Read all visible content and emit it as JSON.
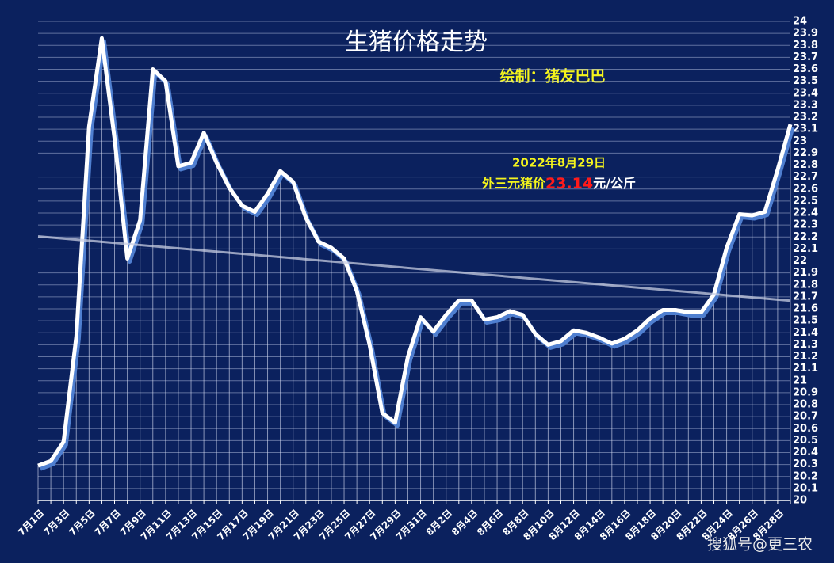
{
  "chart_data": {
    "type": "line",
    "title": "生猪价格走势",
    "credit": "绘制：猪友巴巴",
    "note_date": "2022年8月29日",
    "note_prefix": "外三元猪价",
    "note_unit": "元/公斤",
    "watermark": "搜狐号@更三农",
    "categories": [
      "7月1日",
      null,
      "7月3日",
      null,
      "7月5日",
      null,
      "7月7日",
      null,
      "7月9日",
      null,
      "7月11日",
      null,
      "7月13日",
      null,
      "7月15日",
      null,
      "7月17日",
      null,
      "7月19日",
      null,
      "7月21日",
      null,
      "7月23日",
      null,
      "7月25日",
      null,
      "7月27日",
      null,
      "7月29日",
      null,
      "7月31日",
      null,
      "8月2日",
      null,
      "8月4日",
      null,
      "8月6日",
      null,
      "8月8日",
      null,
      "8月10日",
      null,
      "8月12日",
      null,
      "8月14日",
      null,
      "8月16日",
      null,
      "8月18日",
      null,
      "8月20日",
      null,
      "8月22日",
      null,
      "8月24日",
      null,
      "8月26日",
      null,
      "8月28日",
      null
    ],
    "series": [
      {
        "color": "#ffffff",
        "values": [
          20.29,
          20.33,
          20.49,
          21.37,
          23.12,
          23.86,
          23.02,
          22.02,
          22.34,
          23.6,
          23.5,
          22.79,
          22.82,
          23.07,
          22.82,
          22.61,
          22.46,
          22.41,
          22.56,
          22.75,
          22.66,
          22.36,
          22.16,
          22.11,
          22.02,
          21.75,
          21.3,
          20.73,
          20.65,
          21.2,
          21.53,
          21.41,
          21.55,
          21.67,
          21.67,
          21.51,
          21.53,
          21.58,
          21.55,
          21.39,
          21.3,
          21.33,
          21.42,
          21.4,
          21.36,
          21.31,
          21.35,
          21.42,
          21.52,
          21.59,
          21.59,
          21.57,
          21.57,
          21.72,
          22.11,
          22.39,
          22.38,
          22.41,
          22.76,
          23.14
        ]
      }
    ],
    "ylim": [
      20,
      24
    ],
    "yticks": [
      20,
      20.1,
      20.2,
      20.3,
      20.4,
      20.5,
      20.6,
      20.7,
      20.8,
      20.9,
      21,
      21.1,
      21.2,
      21.3,
      21.4,
      21.5,
      21.6,
      21.7,
      21.8,
      21.9,
      22,
      22.1,
      22.2,
      22.3,
      22.4,
      22.5,
      22.6,
      22.7,
      22.8,
      22.9,
      23,
      23.1,
      23.2,
      23.3,
      23.4,
      23.5,
      23.6,
      23.7,
      23.8,
      23.9,
      24
    ],
    "grid": true,
    "trendline": true
  }
}
